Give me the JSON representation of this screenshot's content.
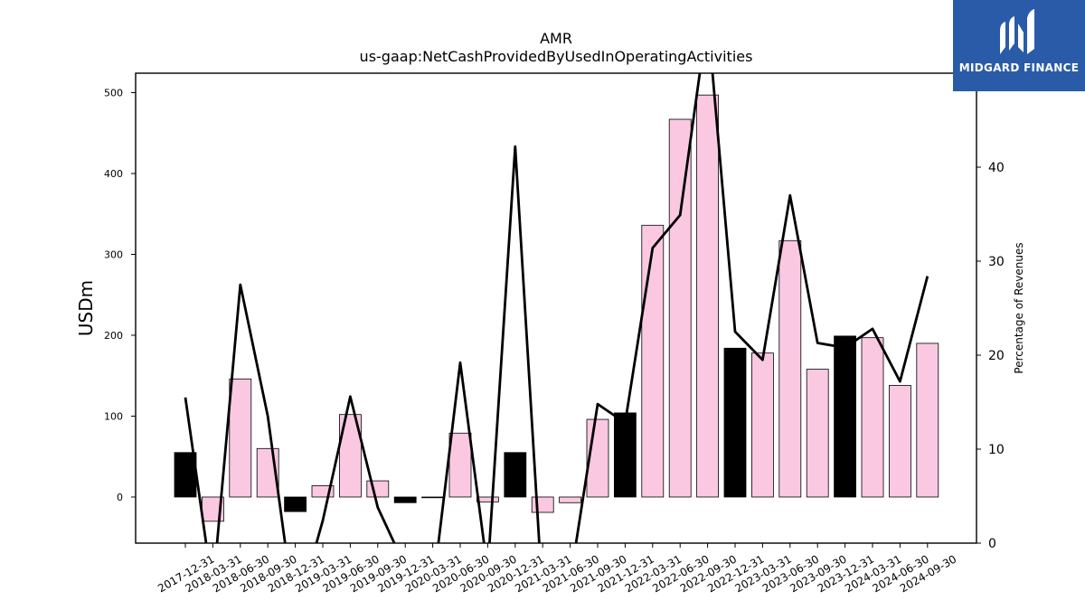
{
  "chart_data": {
    "type": "bar",
    "title": "AMR",
    "subtitle": "us-gaap:NetCashProvidedByUsedInOperatingActivities",
    "ylabel": "USDm",
    "y2label": "Percentage of Revenues",
    "ylim": [
      -57,
      524
    ],
    "y2lim": [
      0,
      50
    ],
    "yticks": [
      0,
      100,
      200,
      300,
      400,
      500
    ],
    "y2ticks": [
      0,
      10,
      20,
      30,
      40
    ],
    "categories": [
      "2017-12-31",
      "2018-03-31",
      "2018-06-30",
      "2018-09-30",
      "2018-12-31",
      "2019-03-31",
      "2019-06-30",
      "2019-09-30",
      "2019-12-31",
      "2020-03-31",
      "2020-06-30",
      "2020-09-30",
      "2020-12-31",
      "2021-03-31",
      "2021-06-30",
      "2021-09-30",
      "2021-12-31",
      "2022-03-31",
      "2022-06-30",
      "2022-09-30",
      "2022-12-31",
      "2023-03-31",
      "2023-06-30",
      "2023-09-30",
      "2023-12-31",
      "2024-03-31",
      "2024-06-30",
      "2024-09-30"
    ],
    "series": [
      {
        "type": "bar",
        "values": [
          55,
          -30,
          146,
          60,
          -18,
          14,
          102,
          20,
          -7,
          0,
          79,
          -6,
          55,
          -19,
          -7,
          96,
          104,
          336,
          467,
          497,
          184,
          178,
          317,
          158,
          199,
          197,
          138,
          190
        ],
        "colors": [
          "#000000",
          "#fbc8e2",
          "#fbc8e2",
          "#fbc8e2",
          "#000000",
          "#fbc8e2",
          "#fbc8e2",
          "#fbc8e2",
          "#000000",
          "#fbc8e2",
          "#fbc8e2",
          "#fbc8e2",
          "#000000",
          "#fbc8e2",
          "#fbc8e2",
          "#fbc8e2",
          "#000000",
          "#fbc8e2",
          "#fbc8e2",
          "#fbc8e2",
          "#000000",
          "#fbc8e2",
          "#fbc8e2",
          "#fbc8e2",
          "#000000",
          "#fbc8e2",
          "#fbc8e2",
          "#fbc8e2"
        ]
      },
      {
        "type": "line",
        "axis": "y2",
        "color": "#000000",
        "values": [
          15.5,
          -5,
          27.5,
          13.5,
          -8,
          2.4,
          15.6,
          3.8,
          -2.5,
          -5,
          19.2,
          -3,
          42.2,
          -6,
          -4,
          14.8,
          12.8,
          31.4,
          34.9,
          56,
          22.5,
          19.5,
          37,
          21.3,
          20.8,
          22.8,
          17.2,
          28.4
        ]
      }
    ],
    "grid": false
  },
  "logo": {
    "text": "MIDGARD FINANCE",
    "icon": "midgard-logo-icon",
    "color": "#2a5ba8"
  }
}
